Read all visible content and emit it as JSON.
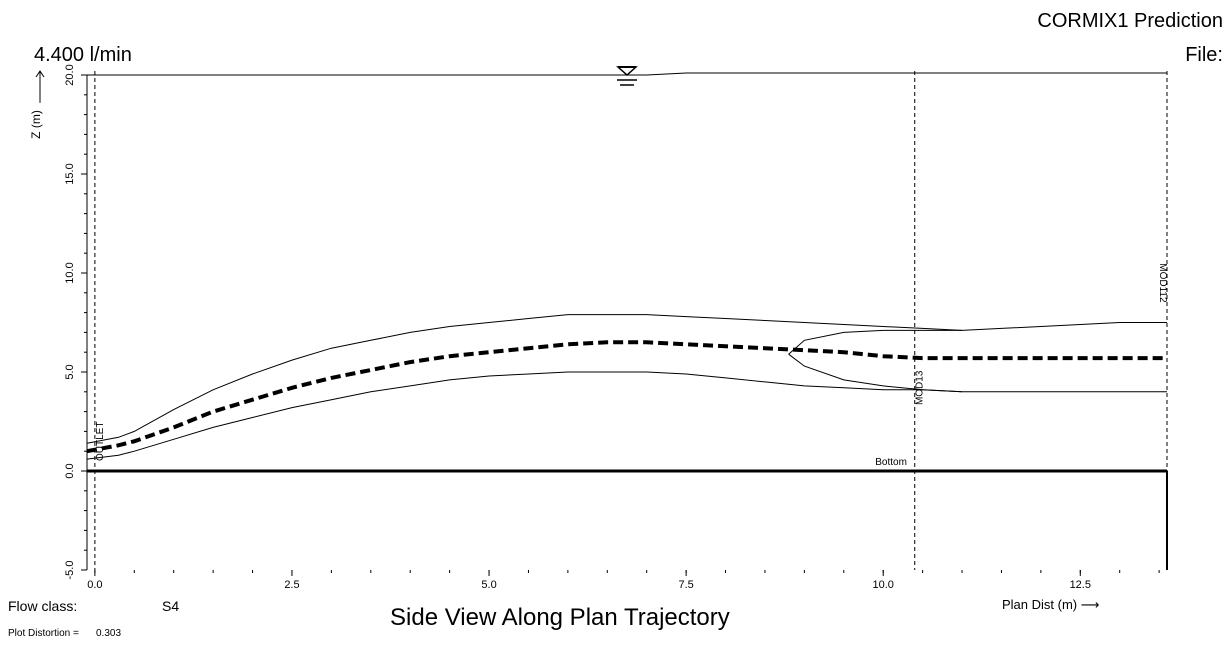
{
  "header": {
    "title": "CORMIX1 Prediction",
    "file_label": "File:"
  },
  "flow_rate": "4.400 l/min",
  "footer": {
    "flow_class_label": "Flow class:",
    "flow_class_value": "S4",
    "distortion_label": "Plot Distortion =",
    "distortion_value": "0.303",
    "view_title": "Side View Along Plan Trajectory"
  },
  "chart_data": {
    "type": "line",
    "title": "Side View Along Plan Trajectory",
    "xlabel": "Plan Dist (m)",
    "ylabel": "Z (m)",
    "xlim": [
      -0.1,
      13.6
    ],
    "ylim": [
      -5.0,
      20.0
    ],
    "x_ticks": [
      0.0,
      2.5,
      5.0,
      7.5,
      10.0,
      12.5
    ],
    "x_tick_labels": [
      "0.0",
      "2.5",
      "5.0",
      "7.5",
      "10.0",
      "12.5"
    ],
    "y_ticks": [
      -5.0,
      0.0,
      5.0,
      10.0,
      15.0,
      20.0
    ],
    "y_tick_labels": [
      "-5.0",
      "0.0",
      "5.0",
      "10.0",
      "15.0",
      "20.0"
    ],
    "grid": false,
    "water_surface_z": 20.0,
    "bottom_z": 0.0,
    "bottom_label": "Bottom",
    "vertical_markers": [
      {
        "x": 0.0,
        "label": "OUTLET"
      },
      {
        "x": 10.4,
        "label": "MOD13"
      },
      {
        "x": 13.6,
        "label": "MOD112"
      }
    ],
    "series": [
      {
        "role": "upper-boundary",
        "style": "solid",
        "x": [
          -0.1,
          0.3,
          0.5,
          1.0,
          1.5,
          2.0,
          2.5,
          3.0,
          3.5,
          4.0,
          4.5,
          5.0,
          5.5,
          6.0,
          6.5,
          7.0,
          7.5,
          8.0,
          8.5,
          9.0,
          9.5,
          10.0,
          10.5,
          11.0,
          11.5,
          12.0,
          12.5,
          13.0,
          13.6
        ],
        "y": [
          1.4,
          1.7,
          2.0,
          3.1,
          4.1,
          4.9,
          5.6,
          6.2,
          6.6,
          7.0,
          7.3,
          7.5,
          7.7,
          7.9,
          7.9,
          7.9,
          7.8,
          7.7,
          7.6,
          7.5,
          7.4,
          7.3,
          7.2,
          7.1,
          7.2,
          7.3,
          7.4,
          7.5,
          7.5
        ]
      },
      {
        "role": "centerline",
        "style": "dashed",
        "x": [
          -0.1,
          0.3,
          0.5,
          1.0,
          1.5,
          2.0,
          2.5,
          3.0,
          3.5,
          4.0,
          4.5,
          5.0,
          5.5,
          6.0,
          6.5,
          7.0,
          7.5,
          8.0,
          8.5,
          9.0,
          9.5,
          10.0,
          10.5,
          11.0,
          11.5,
          12.0,
          12.5,
          13.0,
          13.6
        ],
        "y": [
          1.0,
          1.3,
          1.5,
          2.2,
          3.0,
          3.6,
          4.2,
          4.7,
          5.1,
          5.5,
          5.8,
          6.0,
          6.2,
          6.4,
          6.5,
          6.5,
          6.4,
          6.3,
          6.2,
          6.1,
          6.0,
          5.8,
          5.7,
          5.7,
          5.7,
          5.7,
          5.7,
          5.7,
          5.7
        ]
      },
      {
        "role": "lower-boundary",
        "style": "solid",
        "x": [
          -0.1,
          0.3,
          0.5,
          1.0,
          1.5,
          2.0,
          2.5,
          3.0,
          3.5,
          4.0,
          4.5,
          5.0,
          5.5,
          6.0,
          6.5,
          7.0,
          7.5,
          8.0,
          8.5,
          9.0,
          9.5,
          10.0,
          10.5,
          11.0,
          11.5,
          12.0,
          12.5,
          13.0,
          13.6
        ],
        "y": [
          0.6,
          0.8,
          1.0,
          1.6,
          2.2,
          2.7,
          3.2,
          3.6,
          4.0,
          4.3,
          4.6,
          4.8,
          4.9,
          5.0,
          5.0,
          5.0,
          4.9,
          4.7,
          4.5,
          4.3,
          4.2,
          4.1,
          4.1,
          4.0,
          4.0,
          4.0,
          4.0,
          4.0,
          4.0
        ]
      },
      {
        "role": "far-field-upper",
        "style": "solid",
        "x": [
          8.8,
          9.0,
          9.5,
          10.0,
          10.5,
          11.0
        ],
        "y": [
          5.9,
          6.6,
          7.0,
          7.1,
          7.1,
          7.1
        ]
      },
      {
        "role": "far-field-lower",
        "style": "solid",
        "x": [
          8.8,
          9.0,
          9.5,
          10.0,
          10.5,
          11.0
        ],
        "y": [
          5.9,
          5.3,
          4.6,
          4.3,
          4.1,
          4.0
        ]
      }
    ]
  }
}
